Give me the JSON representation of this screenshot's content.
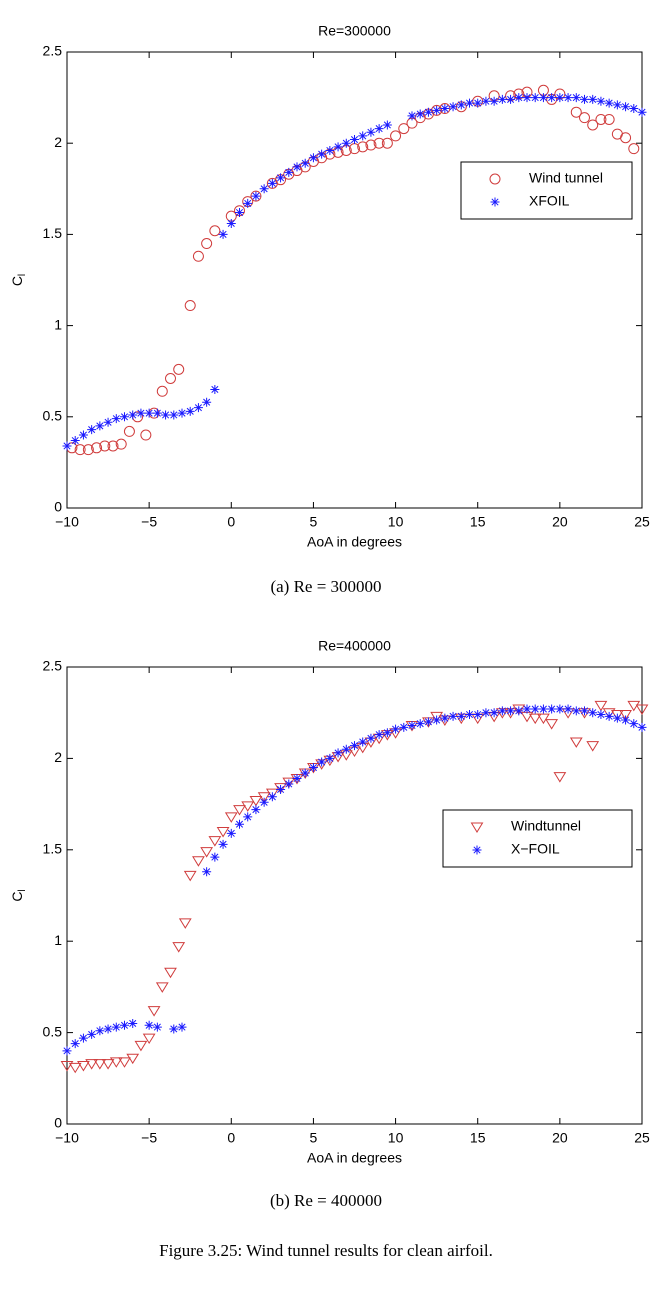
{
  "chart_data": [
    {
      "type": "scatter",
      "title": "Re=300000",
      "xlabel": "AoA in degrees",
      "ylabel": {
        "text": "C",
        "sub": "l"
      },
      "caption": "(a) Re = 300000",
      "xlim": [
        -10,
        25
      ],
      "ylim": [
        0,
        2.5
      ],
      "xticks": [
        {
          "value": -10,
          "label": "−10"
        },
        {
          "value": -5,
          "label": "−5"
        },
        0,
        5,
        10,
        15,
        20,
        25
      ],
      "yticks": [
        0,
        0.5,
        1,
        1.5,
        2,
        2.5
      ],
      "legend": "right",
      "series": [
        {
          "name": "Wind tunnel",
          "marker": "circle",
          "color": "#d03c3c",
          "x": [
            -9.7,
            -9.2,
            -8.7,
            -8.2,
            -7.7,
            -7.2,
            -6.7,
            -6.2,
            -5.7,
            -5.2,
            -4.7,
            -4.2,
            -3.7,
            -3.2,
            -2.5,
            -2,
            -1.5,
            -1,
            0,
            0.5,
            1,
            1.5,
            2.5,
            3,
            3.5,
            4,
            4.5,
            5,
            5.5,
            6,
            6.5,
            7,
            7.5,
            8,
            8.5,
            9,
            9.5,
            10,
            10.5,
            11,
            11.5,
            12,
            12.5,
            13,
            14,
            15,
            16,
            17,
            17.5,
            18,
            19,
            19.5,
            20,
            21,
            21.5,
            22,
            22.5,
            23,
            23.5,
            24,
            24.5
          ],
          "values": [
            0.33,
            0.32,
            0.32,
            0.33,
            0.34,
            0.34,
            0.35,
            0.42,
            0.5,
            0.4,
            0.52,
            0.64,
            0.71,
            0.76,
            1.11,
            1.38,
            1.45,
            1.52,
            1.6,
            1.63,
            1.68,
            1.71,
            1.78,
            1.8,
            1.83,
            1.85,
            1.87,
            1.9,
            1.92,
            1.94,
            1.95,
            1.96,
            1.97,
            1.98,
            1.99,
            2,
            2,
            2.04,
            2.08,
            2.11,
            2.14,
            2.16,
            2.18,
            2.19,
            2.2,
            2.23,
            2.26,
            2.26,
            2.27,
            2.28,
            2.29,
            2.24,
            2.27,
            2.17,
            2.14,
            2.1,
            2.13,
            2.13,
            2.05,
            2.03,
            1.97
          ]
        },
        {
          "name": "XFOIL",
          "marker": "asterisk",
          "color": "#1a1aff",
          "x": [
            -10,
            -9.5,
            -9,
            -8.5,
            -8,
            -7.5,
            -7,
            -6.5,
            -6,
            -5.5,
            -5,
            -4.5,
            -4,
            -3.5,
            -3,
            -2.5,
            -2,
            -1.5,
            -1,
            -0.5,
            0,
            0.5,
            1,
            1.5,
            2,
            2.5,
            3,
            3.5,
            4,
            4.5,
            5,
            5.5,
            6,
            6.5,
            7,
            7.5,
            8,
            8.5,
            9,
            9.5,
            11,
            11.5,
            12,
            12.5,
            13,
            13.5,
            14,
            14.5,
            15,
            15.5,
            16,
            16.5,
            17,
            17.5,
            18,
            18.5,
            19,
            19.5,
            20,
            20.5,
            21,
            21.5,
            22,
            22.5,
            23,
            23.5,
            24,
            24.5,
            25
          ],
          "values": [
            0.34,
            0.37,
            0.4,
            0.43,
            0.45,
            0.47,
            0.49,
            0.5,
            0.51,
            0.52,
            0.52,
            0.52,
            0.51,
            0.51,
            0.52,
            0.53,
            0.55,
            0.58,
            0.65,
            1.5,
            1.56,
            1.62,
            1.67,
            1.71,
            1.75,
            1.78,
            1.81,
            1.84,
            1.87,
            1.89,
            1.92,
            1.94,
            1.96,
            1.98,
            2,
            2.02,
            2.04,
            2.06,
            2.08,
            2.1,
            2.15,
            2.16,
            2.17,
            2.18,
            2.19,
            2.2,
            2.21,
            2.22,
            2.22,
            2.23,
            2.23,
            2.24,
            2.24,
            2.25,
            2.25,
            2.25,
            2.25,
            2.25,
            2.25,
            2.25,
            2.25,
            2.24,
            2.24,
            2.23,
            2.22,
            2.21,
            2.2,
            2.19,
            2.17
          ]
        }
      ]
    },
    {
      "type": "scatter",
      "title": "Re=400000",
      "xlabel": "AoA in degrees",
      "ylabel": {
        "text": "C",
        "sub": "l"
      },
      "caption": "(b) Re = 400000",
      "xlim": [
        -10,
        25
      ],
      "ylim": [
        0,
        2.5
      ],
      "xticks": [
        {
          "value": -10,
          "label": "−10"
        },
        {
          "value": -5,
          "label": "−5"
        },
        0,
        5,
        10,
        15,
        20,
        25
      ],
      "yticks": [
        0,
        0.5,
        1,
        1.5,
        2,
        2.5
      ],
      "legend": "right",
      "series": [
        {
          "name": "Windtunnel",
          "marker": "triangle-down",
          "color": "#d03c3c",
          "x": [
            -10,
            -9.5,
            -9,
            -8.5,
            -8,
            -7.5,
            -7,
            -6.5,
            -6,
            -5.5,
            -5,
            -4.7,
            -4.2,
            -3.7,
            -3.2,
            -2.8,
            -2.5,
            -2,
            -1.5,
            -1,
            -0.5,
            0,
            0.5,
            1,
            1.5,
            2,
            2.5,
            3,
            3.5,
            4,
            4.5,
            5,
            5.5,
            6,
            6.5,
            7,
            7.5,
            8,
            8.5,
            9,
            9.5,
            10,
            11,
            12,
            12.5,
            13,
            14,
            15,
            16,
            16.5,
            17,
            17.5,
            18,
            18.5,
            19,
            19.5,
            20,
            20.5,
            21,
            21.5,
            22,
            22.5,
            23,
            23.5,
            24,
            24.5,
            25
          ],
          "values": [
            0.32,
            0.31,
            0.32,
            0.33,
            0.33,
            0.33,
            0.34,
            0.34,
            0.36,
            0.43,
            0.47,
            0.62,
            0.75,
            0.83,
            0.97,
            1.1,
            1.36,
            1.44,
            1.49,
            1.55,
            1.6,
            1.68,
            1.72,
            1.74,
            1.77,
            1.79,
            1.81,
            1.84,
            1.87,
            1.89,
            1.92,
            1.95,
            1.97,
            1.99,
            2.01,
            2.02,
            2.04,
            2.06,
            2.09,
            2.11,
            2.13,
            2.14,
            2.18,
            2.2,
            2.23,
            2.21,
            2.22,
            2.22,
            2.23,
            2.25,
            2.25,
            2.27,
            2.23,
            2.22,
            2.22,
            2.19,
            1.9,
            2.25,
            2.09,
            2.25,
            2.07,
            2.29,
            2.25,
            2.24,
            2.24,
            2.29,
            2.27
          ]
        },
        {
          "name": "X−FOIL",
          "marker": "asterisk",
          "color": "#1a1aff",
          "x": [
            -10,
            -9.5,
            -9,
            -8.5,
            -8,
            -7.5,
            -7,
            -6.5,
            -6,
            -5,
            -4.5,
            -3.5,
            -3,
            -1.5,
            -1,
            -0.5,
            0,
            0.5,
            1,
            1.5,
            2,
            2.5,
            3,
            3.5,
            4,
            4.5,
            5,
            5.5,
            6,
            6.5,
            7,
            7.5,
            8,
            8.5,
            9,
            9.5,
            10,
            10.5,
            11,
            11.5,
            12,
            12.5,
            13,
            13.5,
            14,
            14.5,
            15,
            15.5,
            16,
            16.5,
            17,
            17.5,
            18,
            18.5,
            19,
            19.5,
            20,
            20.5,
            21,
            21.5,
            22,
            22.5,
            23,
            23.5,
            24,
            24.5,
            25
          ],
          "values": [
            0.4,
            0.44,
            0.47,
            0.49,
            0.51,
            0.52,
            0.53,
            0.54,
            0.55,
            0.54,
            0.53,
            0.52,
            0.53,
            1.38,
            1.46,
            1.53,
            1.59,
            1.64,
            1.68,
            1.72,
            1.76,
            1.79,
            1.83,
            1.86,
            1.89,
            1.92,
            1.95,
            1.98,
            2,
            2.03,
            2.05,
            2.07,
            2.09,
            2.11,
            2.13,
            2.14,
            2.16,
            2.17,
            2.18,
            2.19,
            2.2,
            2.21,
            2.22,
            2.23,
            2.23,
            2.24,
            2.24,
            2.25,
            2.25,
            2.26,
            2.26,
            2.26,
            2.27,
            2.27,
            2.27,
            2.27,
            2.27,
            2.27,
            2.26,
            2.26,
            2.25,
            2.24,
            2.23,
            2.22,
            2.21,
            2.19,
            2.17
          ]
        }
      ]
    }
  ],
  "figure_caption": "Figure 3.25: Wind tunnel results for clean airfoil."
}
